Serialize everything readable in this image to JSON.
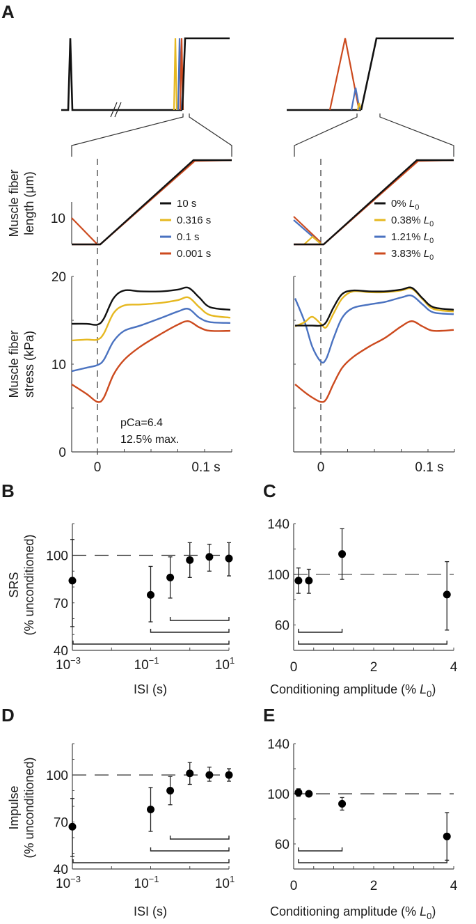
{
  "figure": {
    "panel_labels": [
      "A",
      "B",
      "C",
      "D",
      "E"
    ],
    "colors": {
      "black": "#111111",
      "yellow": "#e6b820",
      "blue": "#4a72c0",
      "red": "#cc4a1e",
      "axis": "#444444",
      "dash": "#333333"
    }
  },
  "chart_data": [
    {
      "id": "A-top-left",
      "type": "line",
      "title": "Stretch protocol schematic (ISI varied)",
      "break_mark": "//",
      "series_colors": [
        "black",
        "yellow",
        "blue",
        "red"
      ]
    },
    {
      "id": "A-top-right",
      "type": "line",
      "title": "Stretch protocol schematic (conditioning amplitude varied)",
      "series_colors": [
        "black",
        "yellow",
        "blue",
        "red"
      ]
    },
    {
      "id": "A-length-left",
      "type": "line",
      "ylabel_line1": "Muscle fiber",
      "ylabel_line2": "length (μm)",
      "yticks": [
        "10"
      ],
      "legend": [
        {
          "label": "10 s",
          "color": "black"
        },
        {
          "label": "0.316 s",
          "color": "yellow"
        },
        {
          "label": "0.1 s",
          "color": "blue"
        },
        {
          "label": "0.001 s",
          "color": "red"
        }
      ]
    },
    {
      "id": "A-length-right",
      "type": "line",
      "legend": [
        {
          "label": "0%",
          "sub": "L",
          "subsub": "0",
          "color": "black"
        },
        {
          "label": "0.38%",
          "sub": "L",
          "subsub": "0",
          "color": "yellow"
        },
        {
          "label": "1.21%",
          "sub": "L",
          "subsub": "0",
          "color": "blue"
        },
        {
          "label": "3.83%",
          "sub": "L",
          "subsub": "0",
          "color": "red"
        }
      ]
    },
    {
      "id": "A-stress-left",
      "type": "line",
      "ylabel_line1": "Muscle fiber",
      "ylabel_line2": "stress (kPa)",
      "ylim": [
        0,
        20
      ],
      "yticks": [
        "0",
        "10",
        "20"
      ],
      "xticks": [
        "0",
        "0.1 s"
      ],
      "xlim": [
        -0.024,
        0.124
      ],
      "annotation_line1": "pCa=6.4",
      "annotation_line2": "12.5% max.",
      "x": [
        -0.024,
        -0.01,
        0.0,
        0.006,
        0.015,
        0.025,
        0.04,
        0.06,
        0.075,
        0.085,
        0.095,
        0.105,
        0.124
      ],
      "series": [
        {
          "name": "10 s",
          "color": "black",
          "values": [
            14.6,
            14.6,
            14.5,
            15.2,
            17.5,
            18.4,
            18.3,
            18.3,
            18.5,
            18.7,
            17.6,
            16.5,
            16.2
          ]
        },
        {
          "name": "0.316 s",
          "color": "yellow",
          "values": [
            12.7,
            12.8,
            12.8,
            13.5,
            15.8,
            16.7,
            16.8,
            17.0,
            17.3,
            17.6,
            16.5,
            15.6,
            15.3
          ]
        },
        {
          "name": "0.1 s",
          "color": "blue",
          "values": [
            9.2,
            9.6,
            9.9,
            10.5,
            12.6,
            13.8,
            14.4,
            15.3,
            16.0,
            16.3,
            15.3,
            14.8,
            14.7
          ]
        },
        {
          "name": "0.001 s",
          "color": "red",
          "values": [
            7.7,
            6.6,
            5.7,
            6.2,
            8.8,
            10.5,
            12.0,
            13.5,
            14.5,
            14.9,
            14.2,
            13.8,
            13.8
          ]
        }
      ]
    },
    {
      "id": "A-stress-right",
      "type": "line",
      "ylim": [
        0,
        20
      ],
      "xticks": [
        "0",
        "0.1 s"
      ],
      "xlim": [
        -0.024,
        0.124
      ],
      "x": [
        -0.024,
        -0.015,
        -0.008,
        0.0,
        0.005,
        0.012,
        0.02,
        0.03,
        0.045,
        0.06,
        0.075,
        0.085,
        0.095,
        0.105,
        0.124
      ],
      "series": [
        {
          "name": "0%",
          "color": "black",
          "values": [
            14.4,
            14.4,
            14.4,
            14.4,
            14.8,
            16.5,
            18.0,
            18.4,
            18.3,
            18.3,
            18.5,
            18.7,
            17.5,
            16.5,
            16.2
          ]
        },
        {
          "name": "0.38%",
          "color": "yellow",
          "values": [
            14.3,
            14.8,
            15.4,
            14.6,
            14.2,
            15.8,
            17.5,
            18.3,
            18.2,
            18.2,
            18.4,
            18.6,
            17.4,
            16.3,
            16.0
          ]
        },
        {
          "name": "1.21%",
          "color": "blue",
          "values": [
            17.5,
            14.8,
            12.0,
            10.3,
            10.6,
            13.0,
            15.3,
            16.4,
            16.8,
            17.1,
            17.6,
            17.8,
            16.8,
            15.9,
            15.7
          ]
        },
        {
          "name": "3.83%",
          "color": "red",
          "values": [
            7.7,
            6.8,
            6.2,
            5.7,
            6.0,
            7.8,
            9.6,
            10.8,
            12.0,
            13.0,
            14.3,
            14.9,
            14.3,
            13.8,
            13.9
          ]
        }
      ]
    },
    {
      "id": "B",
      "type": "scatter",
      "ylabel_line1": "SRS",
      "ylabel_line2": "(% unconditioned)",
      "xlabel": "ISI (s)",
      "xscale": "log",
      "xlim": [
        0.001,
        10
      ],
      "ylim": [
        40,
        120
      ],
      "xticks": [
        {
          "base": "10",
          "exp": "−3"
        },
        {
          "base": "10",
          "exp": "−1"
        },
        {
          "base": "10",
          "exp": "1"
        }
      ],
      "yticks": [
        "40",
        "70",
        "100"
      ],
      "reference_line": 100,
      "points": [
        {
          "x": 0.001,
          "y": 84,
          "lo": 55,
          "hi": 110
        },
        {
          "x": 0.1,
          "y": 75,
          "lo": 58,
          "hi": 93
        },
        {
          "x": 0.316,
          "y": 86,
          "lo": 73,
          "hi": 99
        },
        {
          "x": 1.0,
          "y": 97,
          "lo": 86,
          "hi": 108
        },
        {
          "x": 3.16,
          "y": 99,
          "lo": 90,
          "hi": 107
        },
        {
          "x": 10,
          "y": 98,
          "lo": 87,
          "hi": 108
        }
      ],
      "significance_brackets": [
        [
          0.316,
          10
        ],
        [
          0.1,
          10
        ],
        [
          0.001,
          10
        ]
      ]
    },
    {
      "id": "C",
      "type": "scatter",
      "xlabel": "Conditioning amplitude (%",
      "xlabel_italic": "L",
      "xlabel_sub": "0",
      "xlabel_end": ")",
      "xlim": [
        0,
        4
      ],
      "ylim": [
        40,
        140
      ],
      "xticks": [
        "0",
        "2",
        "4"
      ],
      "yticks": [
        "60",
        "100",
        "140"
      ],
      "reference_line": 100,
      "points": [
        {
          "x": 0.12,
          "y": 95,
          "lo": 85,
          "hi": 105
        },
        {
          "x": 0.38,
          "y": 95,
          "lo": 85,
          "hi": 104
        },
        {
          "x": 1.21,
          "y": 116,
          "lo": 96,
          "hi": 136
        },
        {
          "x": 3.83,
          "y": 84,
          "lo": 56,
          "hi": 110
        }
      ],
      "significance_brackets": [
        [
          0.12,
          1.21
        ],
        [
          0.12,
          3.83
        ]
      ]
    },
    {
      "id": "D",
      "type": "scatter",
      "ylabel_line1": "Impulse",
      "ylabel_line2": "(% unconditioned)",
      "xlabel": "ISI (s)",
      "xscale": "log",
      "xlim": [
        0.001,
        10
      ],
      "ylim": [
        40,
        120
      ],
      "xticks": [
        {
          "base": "10",
          "exp": "−3"
        },
        {
          "base": "10",
          "exp": "−1"
        },
        {
          "base": "10",
          "exp": "1"
        }
      ],
      "yticks": [
        "40",
        "70",
        "100"
      ],
      "reference_line": 100,
      "points": [
        {
          "x": 0.001,
          "y": 67,
          "lo": 48,
          "hi": 85
        },
        {
          "x": 0.1,
          "y": 78,
          "lo": 64,
          "hi": 92
        },
        {
          "x": 0.316,
          "y": 90,
          "lo": 81,
          "hi": 99
        },
        {
          "x": 1.0,
          "y": 101,
          "lo": 94,
          "hi": 108
        },
        {
          "x": 3.16,
          "y": 100,
          "lo": 96,
          "hi": 105
        },
        {
          "x": 10,
          "y": 100,
          "lo": 96,
          "hi": 104
        }
      ],
      "significance_brackets": [
        [
          0.316,
          10
        ],
        [
          0.1,
          10
        ],
        [
          0.001,
          10
        ]
      ]
    },
    {
      "id": "E",
      "type": "scatter",
      "xlabel": "Conditioning amplitude (%",
      "xlabel_italic": "L",
      "xlabel_sub": "0",
      "xlabel_end": ")",
      "xlim": [
        0,
        4
      ],
      "ylim": [
        40,
        140
      ],
      "xticks": [
        "0",
        "2",
        "4"
      ],
      "yticks": [
        "60",
        "100",
        "140"
      ],
      "reference_line": 100,
      "points": [
        {
          "x": 0.12,
          "y": 101,
          "lo": 98,
          "hi": 104
        },
        {
          "x": 0.38,
          "y": 100,
          "lo": 98,
          "hi": 102
        },
        {
          "x": 1.21,
          "y": 92,
          "lo": 87,
          "hi": 97
        },
        {
          "x": 3.83,
          "y": 66,
          "lo": 47,
          "hi": 85
        }
      ],
      "significance_brackets": [
        [
          0.12,
          1.21
        ],
        [
          0.12,
          3.83
        ]
      ]
    }
  ]
}
